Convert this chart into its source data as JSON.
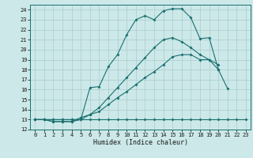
{
  "xlabel": "Humidex (Indice chaleur)",
  "bg_color": "#cce8e8",
  "grid_color": "#aacccc",
  "line_color": "#1a7070",
  "xlim": [
    -0.5,
    23.5
  ],
  "ylim": [
    12,
    24.5
  ],
  "xticks": [
    0,
    1,
    2,
    3,
    4,
    5,
    6,
    7,
    8,
    9,
    10,
    11,
    12,
    13,
    14,
    15,
    16,
    17,
    18,
    19,
    20,
    21,
    22,
    23
  ],
  "yticks": [
    12,
    13,
    14,
    15,
    16,
    17,
    18,
    19,
    20,
    21,
    22,
    23,
    24
  ],
  "series1_x": [
    0,
    1,
    2,
    3,
    4,
    5,
    6,
    7,
    8,
    9,
    10,
    11,
    12,
    13,
    14,
    15,
    16,
    17,
    18,
    19,
    20,
    21,
    22,
    23
  ],
  "series1_y": [
    13,
    13,
    13,
    13,
    13,
    13,
    13,
    13,
    13,
    13,
    13,
    13,
    13,
    13,
    13,
    13,
    13,
    13,
    13,
    13,
    13,
    13,
    13,
    13
  ],
  "series2_x": [
    0,
    1,
    2,
    3,
    4,
    5,
    6,
    7,
    8,
    9,
    10,
    11,
    12,
    13,
    14,
    15,
    16,
    17,
    18,
    19,
    20,
    21
  ],
  "series2_y": [
    13,
    13,
    12.8,
    12.8,
    12.8,
    13.0,
    16.2,
    16.3,
    18.3,
    19.5,
    21.5,
    23.0,
    23.4,
    23.0,
    23.9,
    24.1,
    24.1,
    23.2,
    21.1,
    21.2,
    18.0,
    16.1
  ],
  "series3_x": [
    0,
    1,
    2,
    3,
    4,
    5,
    6,
    7,
    8,
    9,
    10,
    11,
    12,
    13,
    14,
    15,
    16,
    17,
    18,
    19,
    20,
    21,
    22,
    23
  ],
  "series3_y": [
    13,
    13,
    13,
    13,
    13,
    13,
    13.5,
    14.2,
    15.2,
    16.2,
    17.2,
    18.2,
    19.2,
    20.2,
    21.0,
    21.2,
    20.8,
    20.2,
    19.5,
    19.0,
    18.0,
    null,
    null,
    null
  ],
  "series4_x": [
    0,
    1,
    2,
    3,
    4,
    5,
    6,
    7,
    8,
    9,
    10,
    11,
    12,
    13,
    14,
    15,
    16,
    17,
    18,
    19,
    20,
    21,
    22,
    23
  ],
  "series4_y": [
    13,
    13,
    12.8,
    12.8,
    12.8,
    13.2,
    13.5,
    13.8,
    14.5,
    15.2,
    15.8,
    16.5,
    17.2,
    17.8,
    18.5,
    19.3,
    19.5,
    19.5,
    19.0,
    19.0,
    18.5,
    null,
    null,
    null
  ]
}
